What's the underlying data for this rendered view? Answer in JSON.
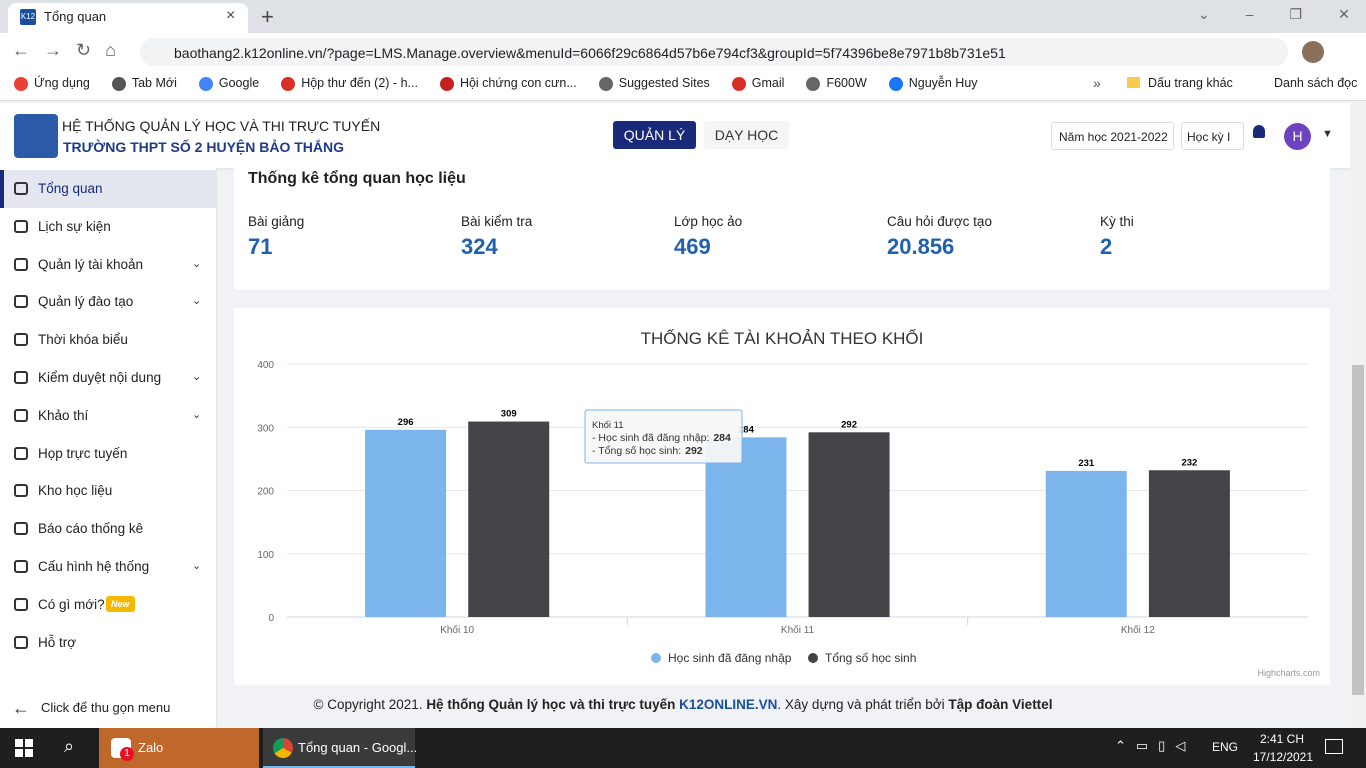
{
  "browser": {
    "tab_icon": "K12",
    "tab_title": "Tổng quan",
    "url": "baothang2.k12online.vn/?page=LMS.Manage.overview&menuId=6066f29c6864d57b6e794cf3&groupId=5f74396be8e7971b8b731e51",
    "bookmarks": [
      "Ứng dụng",
      "Tab Mới",
      "Google",
      "Hộp thư đến (2) - h...",
      "Hội chứng con cưn...",
      "Suggested Sites",
      "Gmail",
      "F600W",
      "Nguyễn Huy"
    ],
    "other_bookmarks": "Dấu trang khác",
    "reading_list": "Danh sách đọc"
  },
  "header": {
    "system_name": "HỆ THỐNG QUẢN LÝ HỌC VÀ THI TRỰC TUYẾN",
    "school_name": "TRƯỜNG THPT SỐ 2 HUYỆN BẢO THẮNG",
    "nav": [
      "QUẢN LÝ",
      "DẠY HỌC"
    ],
    "school_year": "Năm học 2021-2022",
    "semester": "Học kỳ I",
    "avatar": "H"
  },
  "sidebar": {
    "items": [
      {
        "label": "Tổng quan",
        "active": true
      },
      {
        "label": "Lịch sự kiện"
      },
      {
        "label": "Quản lý tài khoản",
        "expandable": true
      },
      {
        "label": "Quản lý đào tạo",
        "expandable": true
      },
      {
        "label": "Thời khóa biểu"
      },
      {
        "label": "Kiểm duyệt nội dung",
        "expandable": true
      },
      {
        "label": "Khảo thí",
        "expandable": true
      },
      {
        "label": "Họp trực tuyến"
      },
      {
        "label": "Kho học liệu"
      },
      {
        "label": "Báo cáo thống kê"
      },
      {
        "label": "Cấu hình hệ thống",
        "expandable": true
      },
      {
        "label": "Có gì mới?",
        "badge": "New"
      },
      {
        "label": "Hỗ trợ"
      }
    ],
    "collapse": "Click để thu gọn menu"
  },
  "overview": {
    "title": "Thống kê tổng quan học liệu",
    "stats": [
      {
        "label": "Bài giảng",
        "value": 71
      },
      {
        "label": "Bài kiểm tra",
        "value": 324
      },
      {
        "label": "Lớp học ảo",
        "value": 469
      },
      {
        "label": "Câu hỏi được tạo",
        "value": 20856,
        "value_label": "20.856"
      },
      {
        "label": "Kỳ thi",
        "value": 2
      }
    ]
  },
  "chart_data": {
    "type": "bar",
    "title": "THỐNG KÊ TÀI KHOẢN THEO KHỐI",
    "categories": [
      "Khối 10",
      "Khối 11",
      "Khối 12"
    ],
    "series": [
      {
        "name": "Học sinh đã đăng nhập",
        "color": "#7cb5ec",
        "values": [
          296,
          284,
          231
        ]
      },
      {
        "name": "Tổng số học sinh",
        "color": "#434348",
        "values": [
          309,
          292,
          232
        ]
      }
    ],
    "ylim": [
      0,
      400
    ],
    "yticks": [
      0,
      100,
      200,
      300,
      400
    ],
    "grid": true,
    "legend": "bottom",
    "tooltip": {
      "lines": [
        "- Học sinh đã đăng nhập:",
        "- Tổng số học sinh:"
      ]
    },
    "credits": "Highcharts.com"
  },
  "footer": {
    "copyright": "© Copyright 2021.",
    "system": "Hệ thống Quản lý học và thi trực tuyến",
    "site": "K12ONLINE.VN",
    "built_by": ". Xây dựng và phát triển bởi",
    "company": "Tập đoàn Viettel"
  },
  "taskbar": {
    "apps": [
      "Zalo",
      "Tổng quan - Googl..."
    ],
    "zalo_badge": "1",
    "language": "ENG",
    "time": "2:41 CH",
    "date": "17/12/2021"
  }
}
